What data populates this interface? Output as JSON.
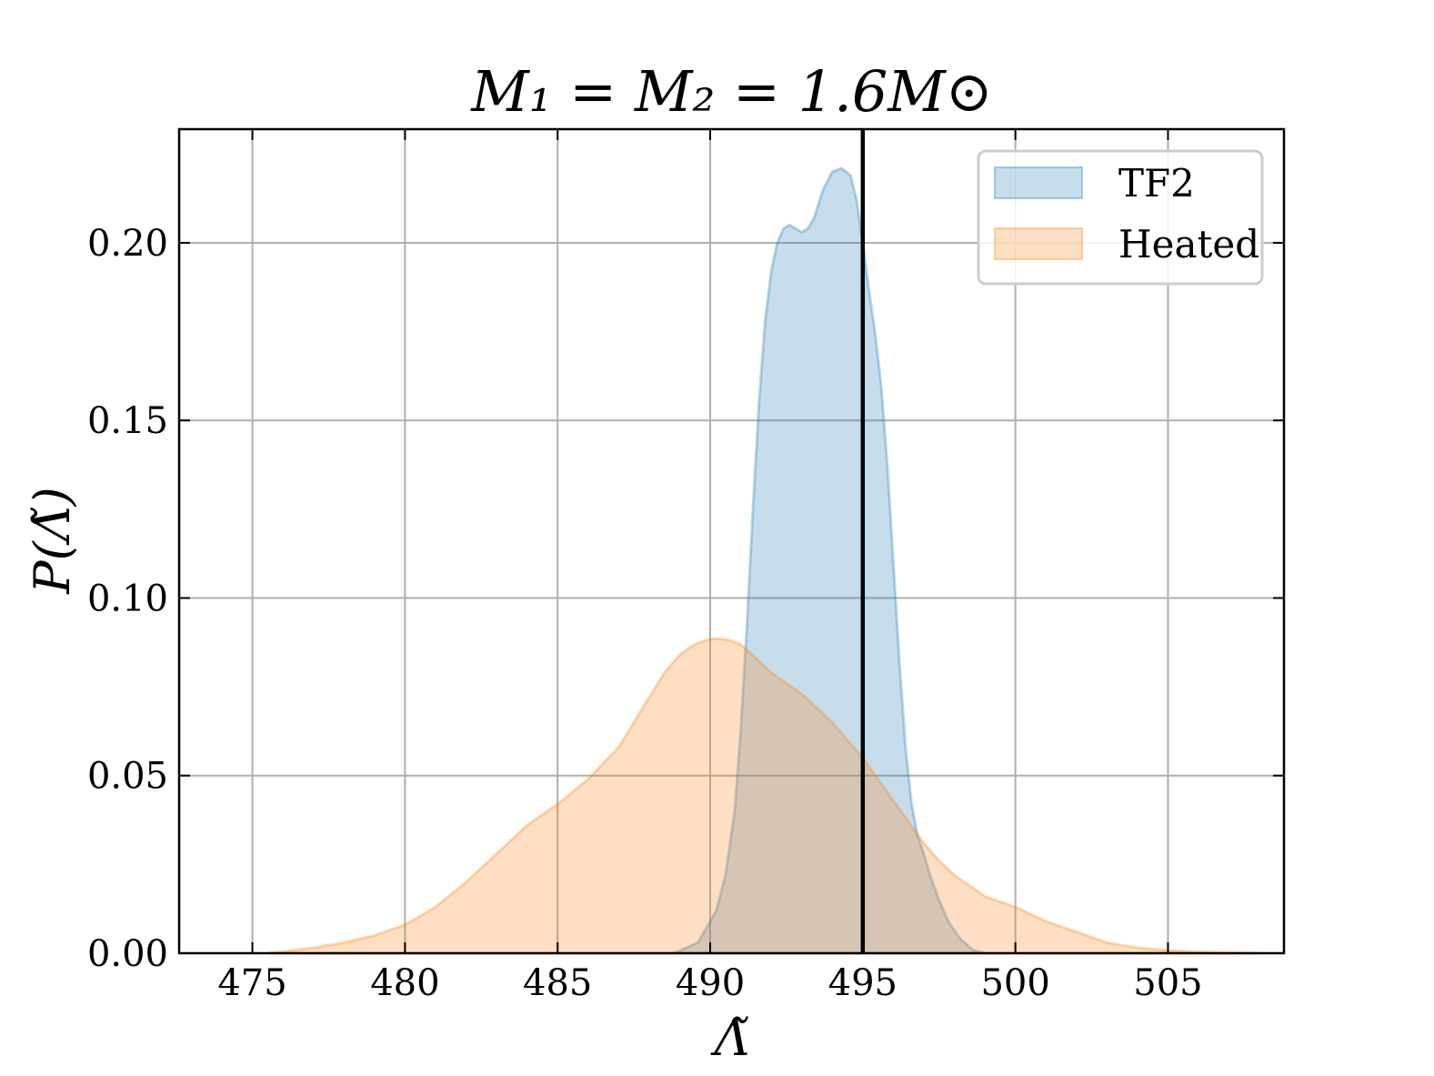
{
  "chart_data": {
    "type": "area",
    "title": "M₁ = M₂ = 1.6M⊙",
    "xlabel": "Λ̃",
    "ylabel": "P(Λ̃)",
    "xlim": [
      472.6,
      508.8
    ],
    "ylim": [
      0,
      0.232
    ],
    "xticks": [
      475,
      480,
      485,
      490,
      495,
      500,
      505
    ],
    "yticks": [
      0.0,
      0.05,
      0.1,
      0.15,
      0.2
    ],
    "xtick_labels": [
      "475",
      "480",
      "485",
      "490",
      "495",
      "500",
      "505"
    ],
    "ytick_labels": [
      "0.00",
      "0.05",
      "0.10",
      "0.15",
      "0.20"
    ],
    "grid": true,
    "legend_position": "top-right",
    "vline": {
      "x": 495.0,
      "color": "#000000"
    },
    "series": [
      {
        "name": "TF2",
        "color": "#1f77b4",
        "x": [
          488.8,
          489.6,
          490.2,
          490.5,
          490.8,
          491.0,
          491.2,
          491.4,
          491.6,
          491.8,
          492.0,
          492.2,
          492.4,
          492.6,
          492.8,
          493.0,
          493.2,
          493.4,
          493.7,
          494.0,
          494.3,
          494.6,
          494.8,
          495.0,
          495.2,
          495.4,
          495.6,
          495.8,
          496.0,
          496.2,
          496.4,
          496.6,
          496.8,
          497.0,
          497.2,
          497.5,
          497.8,
          498.2,
          498.6,
          499.0
        ],
        "y": [
          0.0,
          0.003,
          0.012,
          0.022,
          0.04,
          0.063,
          0.092,
          0.125,
          0.155,
          0.178,
          0.192,
          0.2,
          0.204,
          0.205,
          0.204,
          0.203,
          0.204,
          0.207,
          0.215,
          0.22,
          0.221,
          0.219,
          0.212,
          0.2,
          0.187,
          0.175,
          0.16,
          0.138,
          0.11,
          0.082,
          0.058,
          0.042,
          0.033,
          0.028,
          0.022,
          0.015,
          0.009,
          0.004,
          0.001,
          0.0
        ]
      },
      {
        "name": "Heated",
        "color": "#ff7f0e",
        "x": [
          475.5,
          477.0,
          478.0,
          479.0,
          480.0,
          481.0,
          482.0,
          483.0,
          484.0,
          485.0,
          486.0,
          487.0,
          487.5,
          488.0,
          488.5,
          489.0,
          489.5,
          490.0,
          490.3,
          490.6,
          491.0,
          491.5,
          492.0,
          492.5,
          493.0,
          493.5,
          494.0,
          494.5,
          495.0,
          495.5,
          496.0,
          496.5,
          497.0,
          497.5,
          498.0,
          498.5,
          499.0,
          500.0,
          501.0,
          502.0,
          503.0,
          504.0,
          505.0,
          506.0,
          507.0,
          508.0
        ],
        "y": [
          0.0,
          0.0015,
          0.003,
          0.005,
          0.008,
          0.013,
          0.02,
          0.028,
          0.036,
          0.042,
          0.049,
          0.058,
          0.065,
          0.072,
          0.079,
          0.084,
          0.087,
          0.0885,
          0.0885,
          0.0882,
          0.087,
          0.083,
          0.079,
          0.076,
          0.073,
          0.069,
          0.065,
          0.06,
          0.055,
          0.049,
          0.043,
          0.037,
          0.031,
          0.026,
          0.022,
          0.019,
          0.016,
          0.013,
          0.009,
          0.006,
          0.003,
          0.0015,
          0.0008,
          0.0004,
          0.0002,
          0.0
        ]
      }
    ]
  }
}
